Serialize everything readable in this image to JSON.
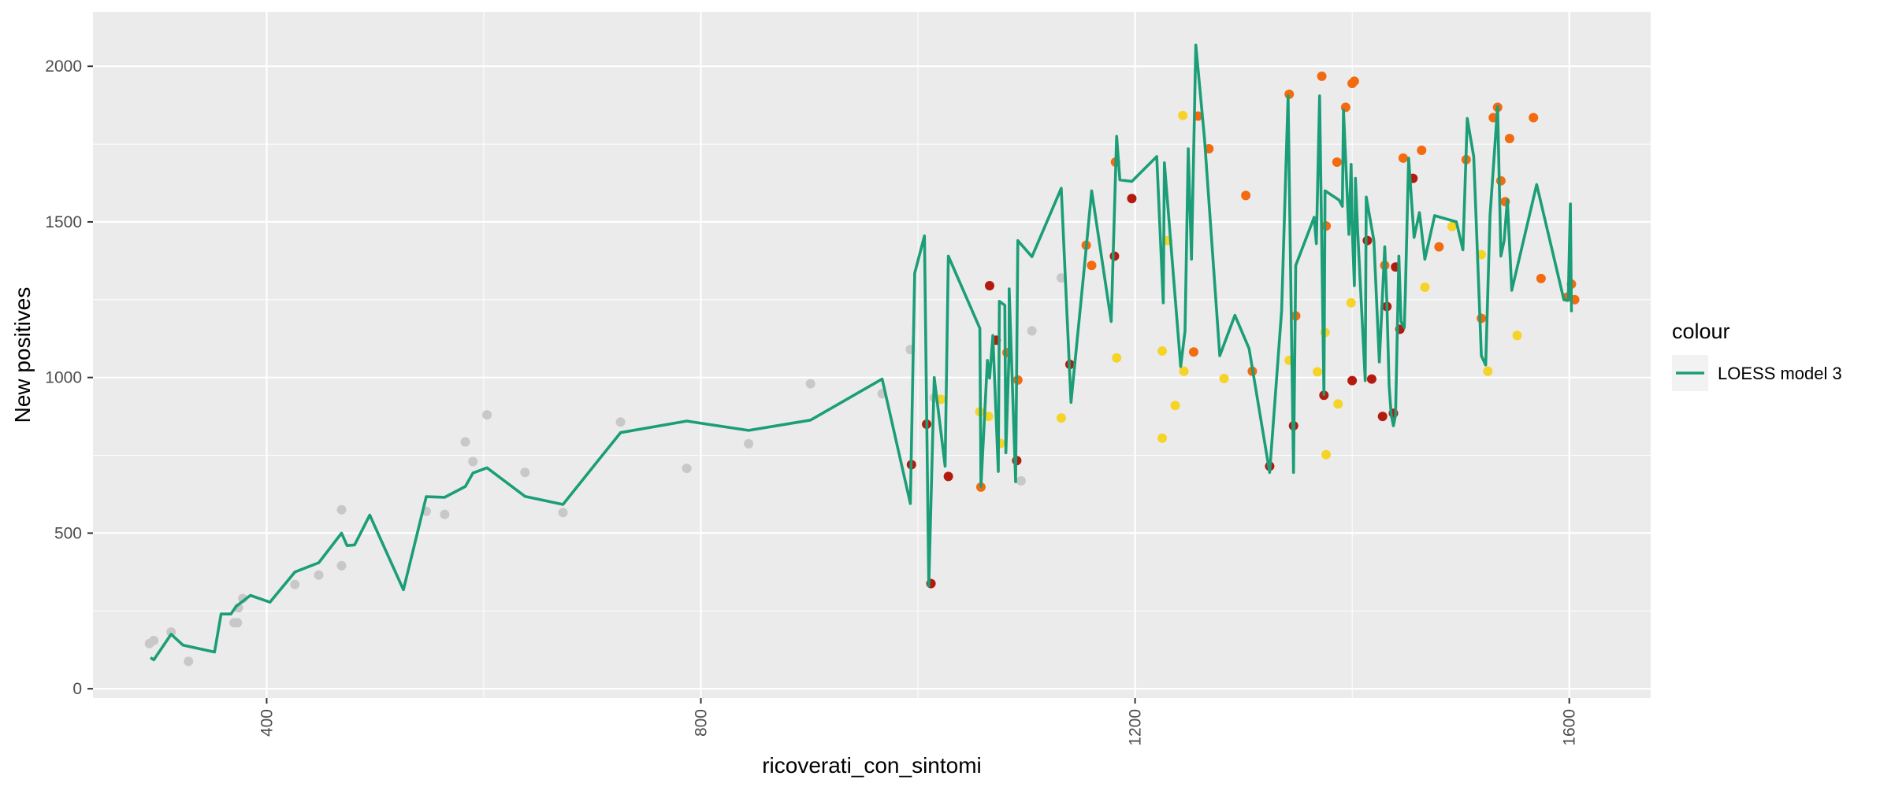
{
  "chart_data": {
    "type": "scatter",
    "xlabel": "ricoverati_con_sintomi",
    "ylabel": "New positives",
    "xlim": [
      240,
      1675
    ],
    "ylim": [
      -30,
      2175
    ],
    "x_ticks": [
      400,
      800,
      1200,
      1600
    ],
    "y_ticks": [
      0,
      500,
      1000,
      1500,
      2000
    ],
    "grid": true,
    "legend": {
      "title": "colour",
      "position": "right",
      "entries": [
        "LOESS model 3"
      ]
    },
    "colors": {
      "panel": "#ebebeb",
      "grid": "#ffffff",
      "line": "#1b9e77",
      "point_gray": "#c8c8c8",
      "point_yellow": "#f5d327",
      "point_orange": "#f36a0f",
      "point_red": "#b31b0f"
    },
    "line_series": {
      "name": "LOESS model 3",
      "points": [
        [
          293,
          100
        ],
        [
          296,
          93
        ],
        [
          312,
          175
        ],
        [
          323,
          140
        ],
        [
          352,
          118
        ],
        [
          358,
          240
        ],
        [
          367,
          240
        ],
        [
          372,
          265
        ],
        [
          385,
          300
        ],
        [
          403,
          278
        ],
        [
          426,
          375
        ],
        [
          448,
          405
        ],
        [
          469,
          500
        ],
        [
          474,
          460
        ],
        [
          481,
          462
        ],
        [
          495,
          558
        ],
        [
          526,
          318
        ],
        [
          547,
          617
        ],
        [
          564,
          615
        ],
        [
          583,
          650
        ],
        [
          590,
          693
        ],
        [
          603,
          710
        ],
        [
          638,
          618
        ],
        [
          673,
          592
        ],
        [
          726,
          823
        ],
        [
          787,
          860
        ],
        [
          844,
          830
        ],
        [
          901,
          863
        ],
        [
          967,
          995
        ],
        [
          993,
          595
        ],
        [
          997,
          1335
        ],
        [
          1006,
          1455
        ],
        [
          1010,
          330
        ],
        [
          1015,
          1000
        ],
        [
          1025,
          715
        ],
        [
          1028,
          1390
        ],
        [
          1057,
          1158
        ],
        [
          1058,
          650
        ],
        [
          1064,
          1055
        ],
        [
          1066,
          998
        ],
        [
          1069,
          1135
        ],
        [
          1074,
          698
        ],
        [
          1075,
          1245
        ],
        [
          1080,
          1232
        ],
        [
          1081,
          758
        ],
        [
          1084,
          1090
        ],
        [
          1084,
          1285
        ],
        [
          1090,
          665
        ],
        [
          1092,
          1440
        ],
        [
          1105,
          1388
        ],
        [
          1132,
          1608
        ],
        [
          1141,
          920
        ],
        [
          1154,
          1380
        ],
        [
          1160,
          1600
        ],
        [
          1178,
          1180
        ],
        [
          1183,
          1775
        ],
        [
          1186,
          1635
        ],
        [
          1197,
          1630
        ],
        [
          1220,
          1710
        ],
        [
          1226,
          1240
        ],
        [
          1227,
          1690
        ],
        [
          1242,
          1035
        ],
        [
          1246,
          1150
        ],
        [
          1249,
          1735
        ],
        [
          1252,
          1380
        ],
        [
          1256,
          2068
        ],
        [
          1264,
          1765
        ],
        [
          1278,
          1070
        ],
        [
          1292,
          1200
        ],
        [
          1305,
          1093
        ],
        [
          1324,
          695
        ],
        [
          1335,
          1215
        ],
        [
          1341,
          1905
        ],
        [
          1346,
          695
        ],
        [
          1348,
          1360
        ],
        [
          1365,
          1515
        ],
        [
          1367,
          1430
        ],
        [
          1370,
          1905
        ],
        [
          1374,
          945
        ],
        [
          1375,
          1600
        ],
        [
          1388,
          1570
        ],
        [
          1391,
          1550
        ],
        [
          1392,
          1860
        ],
        [
          1397,
          1460
        ],
        [
          1399,
          1685
        ],
        [
          1400,
          1490
        ],
        [
          1402,
          1295
        ],
        [
          1403,
          1640
        ],
        [
          1405,
          1475
        ],
        [
          1412,
          990
        ],
        [
          1413,
          1580
        ],
        [
          1420,
          1440
        ],
        [
          1425,
          1050
        ],
        [
          1430,
          1420
        ],
        [
          1432,
          1240
        ],
        [
          1434,
          975
        ],
        [
          1436,
          880
        ],
        [
          1438,
          845
        ],
        [
          1440,
          880
        ],
        [
          1443,
          1390
        ],
        [
          1445,
          1180
        ],
        [
          1448,
          1160
        ],
        [
          1449,
          1270
        ],
        [
          1452,
          1705
        ],
        [
          1457,
          1450
        ],
        [
          1462,
          1530
        ],
        [
          1467,
          1380
        ],
        [
          1476,
          1520
        ],
        [
          1496,
          1500
        ],
        [
          1502,
          1410
        ],
        [
          1506,
          1832
        ],
        [
          1512,
          1710
        ],
        [
          1519,
          1070
        ],
        [
          1523,
          1040
        ],
        [
          1527,
          1520
        ],
        [
          1534,
          1870
        ],
        [
          1537,
          1390
        ],
        [
          1540,
          1440
        ],
        [
          1543,
          1570
        ],
        [
          1547,
          1280
        ],
        [
          1570,
          1620
        ],
        [
          1595,
          1250
        ],
        [
          1599,
          1248
        ],
        [
          1601,
          1558
        ],
        [
          1602,
          1210
        ]
      ]
    },
    "scatter_series": [
      {
        "group": "gray",
        "points": [
          [
            292,
            145
          ],
          [
            296,
            155
          ],
          [
            312,
            182
          ],
          [
            328,
            88
          ],
          [
            370,
            212
          ],
          [
            373,
            212
          ],
          [
            374,
            260
          ],
          [
            378,
            290
          ],
          [
            426,
            335
          ],
          [
            448,
            365
          ],
          [
            469,
            395
          ],
          [
            469,
            575
          ],
          [
            547,
            570
          ],
          [
            564,
            560
          ],
          [
            583,
            793
          ],
          [
            590,
            730
          ],
          [
            603,
            880
          ],
          [
            638,
            695
          ],
          [
            673,
            566
          ],
          [
            726,
            857
          ],
          [
            787,
            708
          ],
          [
            844,
            787
          ],
          [
            901,
            980
          ],
          [
            967,
            948
          ],
          [
            993,
            1090
          ],
          [
            1015,
            935
          ],
          [
            1095,
            668
          ],
          [
            1105,
            1150
          ],
          [
            1132,
            1320
          ]
        ]
      },
      {
        "group": "yellow",
        "points": [
          [
            1021,
            930
          ],
          [
            1057,
            890
          ],
          [
            1065,
            875
          ],
          [
            1076,
            788
          ],
          [
            1183,
            1063
          ],
          [
            1132,
            870
          ],
          [
            1225,
            1085
          ],
          [
            1225,
            805
          ],
          [
            1237,
            910
          ],
          [
            1244,
            1842
          ],
          [
            1282,
            997
          ],
          [
            1342,
            1055
          ],
          [
            1368,
            1018
          ],
          [
            1375,
            1145
          ],
          [
            1376,
            752
          ],
          [
            1387,
            915
          ],
          [
            1399,
            1240
          ],
          [
            1467,
            1290
          ],
          [
            1492,
            1485
          ],
          [
            1519,
            1395
          ],
          [
            1525,
            1020
          ],
          [
            1552,
            1135
          ],
          [
            1230,
            1440
          ],
          [
            1245,
            1020
          ]
        ]
      },
      {
        "group": "orange",
        "points": [
          [
            1058,
            648
          ],
          [
            1082,
            1080
          ],
          [
            1092,
            992
          ],
          [
            1155,
            1425
          ],
          [
            1160,
            1360
          ],
          [
            1182,
            1692
          ],
          [
            1254,
            1082
          ],
          [
            1258,
            1840
          ],
          [
            1268,
            1735
          ],
          [
            1302,
            1585
          ],
          [
            1308,
            1020
          ],
          [
            1342,
            1910
          ],
          [
            1348,
            1198
          ],
          [
            1372,
            1968
          ],
          [
            1376,
            1487
          ],
          [
            1386,
            1692
          ],
          [
            1394,
            1868
          ],
          [
            1400,
            1945
          ],
          [
            1402,
            1952
          ],
          [
            1430,
            1360
          ],
          [
            1447,
            1705
          ],
          [
            1464,
            1730
          ],
          [
            1480,
            1420
          ],
          [
            1505,
            1700
          ],
          [
            1519,
            1190
          ],
          [
            1530,
            1835
          ],
          [
            1534,
            1868
          ],
          [
            1537,
            1632
          ],
          [
            1541,
            1565
          ],
          [
            1545,
            1768
          ],
          [
            1567,
            1835
          ],
          [
            1574,
            1318
          ],
          [
            1598,
            1258
          ],
          [
            1602,
            1300
          ],
          [
            1605,
            1250
          ]
        ]
      },
      {
        "group": "red",
        "points": [
          [
            994,
            720
          ],
          [
            1008,
            850
          ],
          [
            1012,
            338
          ],
          [
            1028,
            682
          ],
          [
            1066,
            1295
          ],
          [
            1072,
            1120
          ],
          [
            1091,
            733
          ],
          [
            1140,
            1042
          ],
          [
            1181,
            1390
          ],
          [
            1197,
            1575
          ],
          [
            1324,
            715
          ],
          [
            1346,
            845
          ],
          [
            1374,
            943
          ],
          [
            1400,
            990
          ],
          [
            1414,
            1440
          ],
          [
            1418,
            995
          ],
          [
            1428,
            875
          ],
          [
            1432,
            1228
          ],
          [
            1438,
            885
          ],
          [
            1440,
            1355
          ],
          [
            1444,
            1155
          ],
          [
            1456,
            1640
          ]
        ]
      }
    ]
  }
}
